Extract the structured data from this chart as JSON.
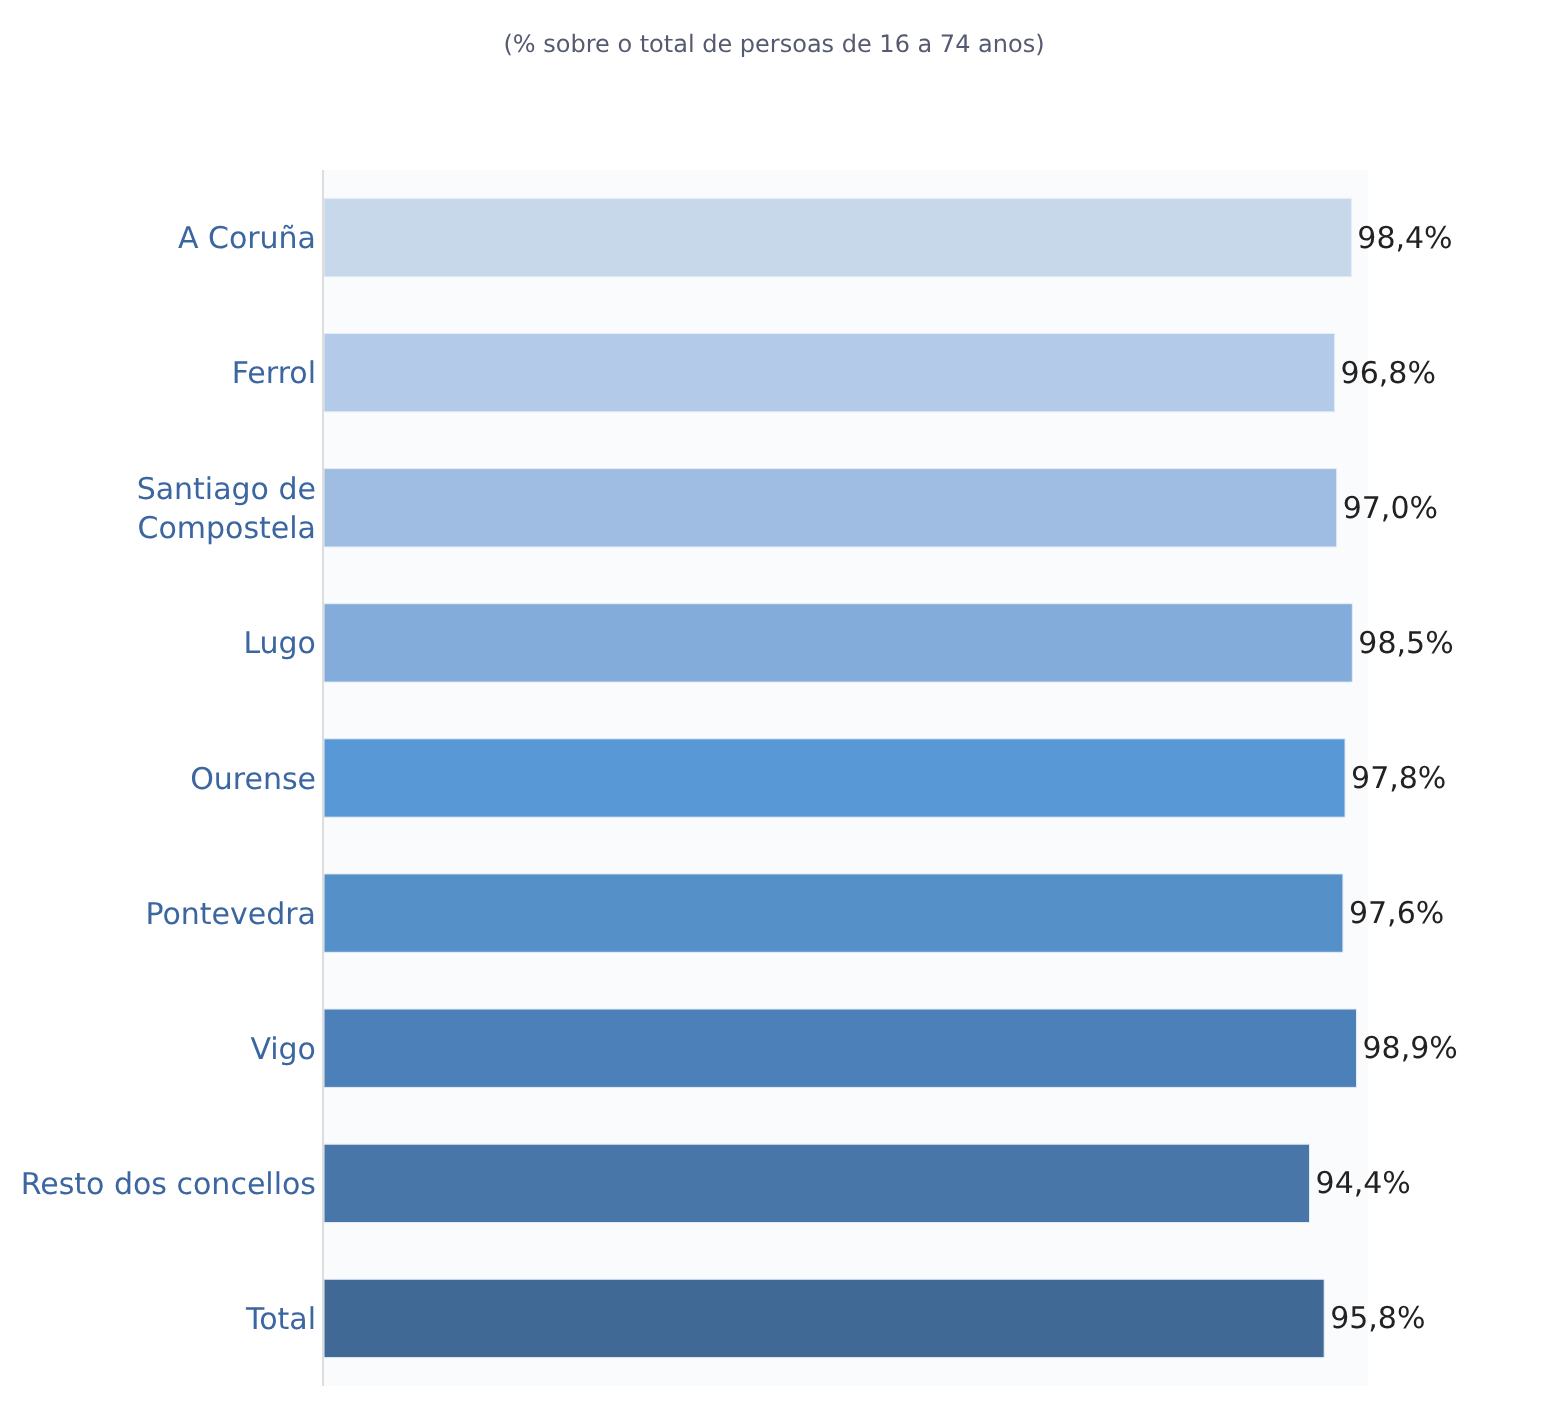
{
  "chart_data": {
    "type": "bar",
    "orientation": "horizontal",
    "title": "(% sobre o total de persoas de 16 a 74 anos)",
    "categories": [
      "A Coruña",
      "Ferrol",
      "Santiago de Compostela",
      "Lugo",
      "Ourense",
      "Pontevedra",
      "Vigo",
      "Resto dos concellos",
      "Total"
    ],
    "values": [
      98.4,
      96.8,
      97.0,
      98.5,
      97.8,
      97.6,
      98.9,
      94.4,
      95.8
    ],
    "value_labels": [
      "98,4%",
      "96,8%",
      "97,0%",
      "98,5%",
      "97,8%",
      "97,6%",
      "98,9%",
      "94,4%",
      "95,8%"
    ],
    "colors": [
      "#c8d8eb",
      "#b3cbe8",
      "#9fbce2",
      "#84acdb",
      "#5898d6",
      "#5590c9",
      "#4c80b8",
      "#4976a8",
      "#416996"
    ],
    "xlim": [
      0,
      100
    ],
    "tick_labels": "y",
    "grid": false,
    "legend": false
  }
}
